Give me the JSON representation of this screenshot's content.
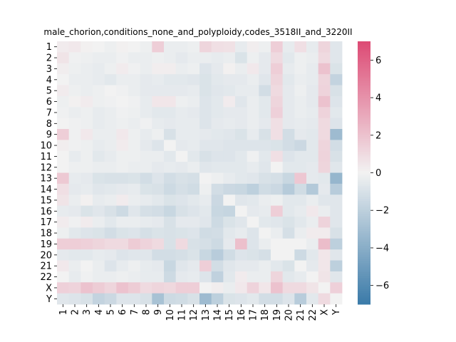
{
  "chart_data": {
    "type": "heatmap",
    "title": "male_chorion,conditions_none_and_polyploidy,codes_3518II_and_3220II",
    "xlabel": "",
    "ylabel": "",
    "x_categories": [
      "1",
      "2",
      "3",
      "4",
      "5",
      "6",
      "7",
      "8",
      "9",
      "10",
      "11",
      "12",
      "13",
      "14",
      "15",
      "16",
      "17",
      "18",
      "19",
      "20",
      "21",
      "22",
      "X",
      "Y"
    ],
    "y_categories": [
      "1",
      "2",
      "3",
      "4",
      "5",
      "6",
      "7",
      "8",
      "9",
      "10",
      "11",
      "12",
      "13",
      "14",
      "15",
      "16",
      "17",
      "18",
      "19",
      "20",
      "21",
      "22",
      "X",
      "Y"
    ],
    "colorbar": {
      "range": [
        -7,
        7
      ],
      "ticks": [
        -6,
        -4,
        -2,
        0,
        2,
        4,
        6
      ],
      "tick_labels": [
        "−6",
        "−4",
        "−2",
        "0",
        "2",
        "4",
        "6"
      ],
      "low_color": "#3a7aa8",
      "mid_color": "#f2f2f2",
      "high_color": "#dd4a74"
    },
    "values": [
      [
        0.3,
        0.4,
        0.1,
        0.0,
        -0.2,
        0.1,
        0.0,
        -0.2,
        1.5,
        -0.3,
        -0.3,
        -0.2,
        1.2,
        0.8,
        0.7,
        -0.4,
        0.2,
        -0.2,
        1.5,
        -0.4,
        0.8,
        -0.4,
        1.2,
        -0.7
      ],
      [
        0.6,
        -0.1,
        -0.2,
        -0.3,
        -0.3,
        -0.1,
        -0.3,
        -0.3,
        -0.2,
        -0.3,
        -0.5,
        -0.3,
        -0.3,
        -0.4,
        -0.3,
        -0.9,
        -0.2,
        -0.5,
        1.0,
        -0.6,
        -0.2,
        -0.3,
        1.0,
        -0.7
      ],
      [
        0.2,
        -0.2,
        -0.3,
        -0.4,
        -0.2,
        0.3,
        -0.1,
        -0.3,
        0.2,
        0.2,
        -0.3,
        -0.2,
        -0.8,
        -0.5,
        0.1,
        -0.3,
        0.4,
        -0.5,
        1.5,
        -0.4,
        -0.2,
        -0.4,
        2.0,
        -0.9
      ],
      [
        0.0,
        -0.3,
        -0.3,
        -0.4,
        -0.6,
        -0.3,
        -0.3,
        -0.5,
        -0.4,
        -0.6,
        -0.6,
        -0.7,
        -0.9,
        -0.6,
        -0.5,
        -0.5,
        -0.3,
        -0.7,
        1.2,
        -0.6,
        -0.3,
        -0.4,
        1.2,
        -1.8
      ],
      [
        0.3,
        -0.2,
        -0.3,
        -0.2,
        0.0,
        -0.1,
        -0.3,
        -0.5,
        -0.5,
        -0.5,
        -0.5,
        -0.4,
        -0.9,
        -0.7,
        -0.6,
        -0.4,
        -0.4,
        -1.2,
        1.0,
        -0.5,
        -0.2,
        -0.5,
        1.3,
        -1.0
      ],
      [
        -0.2,
        0.1,
        0.3,
        -0.2,
        -0.1,
        0.0,
        -0.1,
        -0.4,
        0.5,
        0.5,
        -0.2,
        -0.3,
        -0.8,
        -0.6,
        0.3,
        -0.7,
        -0.3,
        -0.6,
        1.2,
        -0.5,
        -0.3,
        -0.5,
        2.0,
        -0.8
      ],
      [
        -0.1,
        -0.3,
        -0.2,
        -0.4,
        -0.3,
        -0.1,
        -0.2,
        -0.4,
        -0.6,
        -0.6,
        -0.4,
        -0.5,
        -0.8,
        -0.6,
        -0.5,
        -0.5,
        -0.3,
        -0.6,
        1.4,
        -0.5,
        -0.3,
        -0.4,
        1.3,
        -0.6
      ],
      [
        0.0,
        -0.1,
        -0.2,
        -0.4,
        -0.3,
        -0.2,
        -0.3,
        -0.1,
        -0.4,
        -0.5,
        -0.4,
        -0.4,
        -0.8,
        -0.5,
        -0.4,
        -0.5,
        -0.3,
        -0.5,
        0.8,
        -0.5,
        -0.4,
        -0.5,
        1.0,
        -0.8
      ],
      [
        1.5,
        -0.1,
        0.4,
        -0.3,
        -0.3,
        0.4,
        -0.2,
        -0.4,
        -0.2,
        -1.0,
        -0.4,
        -0.4,
        -0.5,
        -0.6,
        -0.7,
        -0.9,
        -0.4,
        -1.0,
        0.8,
        -1.2,
        -0.5,
        -0.6,
        1.0,
        -3.2
      ],
      [
        0.2,
        -0.1,
        -0.2,
        -0.4,
        -0.3,
        0.3,
        -0.2,
        -0.5,
        -0.8,
        0.0,
        -0.5,
        -0.4,
        -0.7,
        -0.7,
        -0.8,
        -0.8,
        -0.8,
        -0.8,
        -0.9,
        -1.2,
        -1.5,
        -0.6,
        1.2,
        -1.2
      ],
      [
        0.0,
        -0.4,
        -0.2,
        -0.6,
        -0.4,
        -0.2,
        -0.2,
        -0.3,
        -0.3,
        -0.6,
        0.0,
        -0.6,
        -1.0,
        -0.8,
        -0.8,
        -0.6,
        -0.1,
        -0.6,
        0.8,
        -0.8,
        -0.6,
        -0.6,
        1.3,
        -1.0
      ],
      [
        0.0,
        -0.2,
        -0.2,
        -0.3,
        -0.3,
        -0.2,
        -0.3,
        -0.3,
        -0.5,
        -0.4,
        -0.5,
        -0.3,
        -0.7,
        -0.6,
        -0.6,
        -0.6,
        -0.4,
        -0.7,
        0.0,
        -0.6,
        -0.6,
        -0.5,
        1.2,
        -0.7
      ],
      [
        1.7,
        -0.4,
        -0.5,
        -0.9,
        -1.0,
        -1.0,
        -0.9,
        -1.2,
        -0.8,
        -1.2,
        -1.0,
        -1.1,
        0.0,
        -0.2,
        -0.4,
        -0.6,
        -0.7,
        -1.0,
        -1.1,
        -1.6,
        1.8,
        -0.5,
        -0.6,
        -3.5
      ],
      [
        0.8,
        -0.5,
        -0.4,
        -0.7,
        -0.6,
        -0.5,
        -0.4,
        -0.9,
        -1.0,
        -1.4,
        -1.1,
        -1.3,
        -0.2,
        -1.2,
        -1.5,
        -1.6,
        -2.0,
        -1.3,
        -1.5,
        -2.3,
        -1.3,
        -2.4,
        -0.5,
        -2.2
      ],
      [
        0.6,
        -0.3,
        0.1,
        -0.4,
        -0.3,
        0.3,
        -0.3,
        -0.4,
        -0.6,
        -0.9,
        -0.8,
        -0.6,
        -0.4,
        -1.5,
        0.0,
        -0.7,
        -0.6,
        -0.3,
        -0.2,
        -0.6,
        -0.6,
        -0.3,
        -0.7,
        -0.7
      ],
      [
        -0.4,
        -0.5,
        -0.9,
        -0.7,
        -1.0,
        -1.4,
        -0.7,
        -1.1,
        -1.2,
        -1.6,
        -1.0,
        -0.8,
        -0.6,
        -1.6,
        -1.7,
        0.0,
        -0.5,
        -0.4,
        1.5,
        -0.6,
        -0.4,
        0.4,
        -0.3,
        -0.7
      ],
      [
        0.3,
        -0.1,
        0.3,
        -0.3,
        -0.6,
        -0.3,
        -0.3,
        -0.4,
        -0.5,
        -1.0,
        -0.5,
        -0.5,
        -0.7,
        -1.4,
        -0.9,
        -0.7,
        0.0,
        -0.6,
        -0.7,
        -0.9,
        -0.6,
        -0.3,
        1.3,
        -0.7
      ],
      [
        -0.2,
        -0.6,
        -0.8,
        -0.9,
        -1.2,
        -0.9,
        -0.8,
        -1.1,
        -0.9,
        -1.0,
        -0.9,
        -0.8,
        -1.3,
        -1.2,
        -0.6,
        -0.4,
        -0.8,
        0.0,
        -0.3,
        -1.1,
        -0.3,
        0.3,
        0.3,
        -1.0
      ],
      [
        1.5,
        1.5,
        1.4,
        1.2,
        1.0,
        1.0,
        1.6,
        1.3,
        1.0,
        -1.0,
        1.0,
        -1.0,
        -1.1,
        -1.4,
        -0.5,
        2.1,
        -0.8,
        -0.3,
        0.0,
        0.0,
        0.0,
        -0.3,
        2.2,
        -2.0
      ],
      [
        -0.5,
        -0.6,
        -0.6,
        -0.4,
        -0.5,
        -0.8,
        -0.7,
        -0.7,
        -1.2,
        -1.2,
        -1.1,
        -0.9,
        -1.6,
        -2.2,
        -1.3,
        -0.8,
        -0.9,
        -1.1,
        0.0,
        0.0,
        -1.4,
        -0.6,
        0.5,
        -0.7
      ],
      [
        0.4,
        -0.3,
        0.0,
        -0.3,
        -0.8,
        -0.4,
        -0.2,
        -0.4,
        -0.5,
        -1.6,
        -0.7,
        -0.5,
        1.5,
        -1.2,
        -0.7,
        -0.5,
        -0.5,
        -0.3,
        -0.6,
        -0.9,
        0.0,
        -0.5,
        0.5,
        -2.0
      ],
      [
        0.0,
        -0.4,
        -0.1,
        -0.3,
        -0.3,
        -0.2,
        -0.3,
        -0.4,
        -0.4,
        -1.4,
        -0.5,
        -0.4,
        -0.8,
        -1.9,
        -0.6,
        0.3,
        -0.3,
        -0.3,
        1.2,
        -0.6,
        -0.4,
        0.0,
        0.6,
        -0.7
      ],
      [
        1.4,
        1.3,
        2.0,
        1.6,
        1.2,
        2.0,
        1.6,
        1.0,
        1.2,
        1.1,
        1.5,
        1.5,
        0.0,
        0.2,
        -0.3,
        0.4,
        1.3,
        0.5,
        2.0,
        1.0,
        1.0,
        0.6,
        0.0,
        1.4
      ],
      [
        -0.7,
        -0.8,
        -1.0,
        -1.8,
        -1.5,
        -0.8,
        -0.8,
        -1.0,
        -2.8,
        -1.4,
        -1.3,
        -1.0,
        -3.2,
        -2.0,
        -0.9,
        -0.8,
        -0.6,
        -1.2,
        -1.2,
        -0.8,
        -2.2,
        -0.6,
        1.0,
        0.0
      ]
    ]
  }
}
